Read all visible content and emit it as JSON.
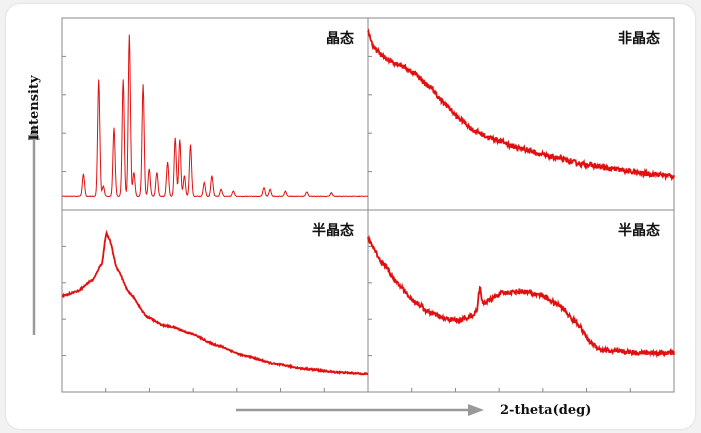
{
  "chart_data": {
    "type": "line",
    "axis": {
      "xlabel": "2-theta(deg)",
      "ylabel": "Intensity"
    },
    "series_color": "#e01010",
    "grid": false,
    "panels": [
      {
        "id": "top-left",
        "title": "晶态",
        "style": "peaks",
        "baseline": 0.02,
        "x_range": [
          0,
          1
        ],
        "y_range": [
          0,
          1
        ],
        "peaks": [
          {
            "x": 0.07,
            "h": 0.13
          },
          {
            "x": 0.12,
            "h": 0.68
          },
          {
            "x": 0.135,
            "h": 0.06
          },
          {
            "x": 0.17,
            "h": 0.4
          },
          {
            "x": 0.2,
            "h": 0.68
          },
          {
            "x": 0.22,
            "h": 0.94
          },
          {
            "x": 0.235,
            "h": 0.14
          },
          {
            "x": 0.265,
            "h": 0.65
          },
          {
            "x": 0.285,
            "h": 0.16
          },
          {
            "x": 0.31,
            "h": 0.14
          },
          {
            "x": 0.345,
            "h": 0.2
          },
          {
            "x": 0.37,
            "h": 0.34
          },
          {
            "x": 0.385,
            "h": 0.33
          },
          {
            "x": 0.4,
            "h": 0.12
          },
          {
            "x": 0.42,
            "h": 0.3
          },
          {
            "x": 0.465,
            "h": 0.08
          },
          {
            "x": 0.49,
            "h": 0.12
          },
          {
            "x": 0.52,
            "h": 0.04
          },
          {
            "x": 0.56,
            "h": 0.03
          },
          {
            "x": 0.66,
            "h": 0.05
          },
          {
            "x": 0.68,
            "h": 0.04
          },
          {
            "x": 0.73,
            "h": 0.03
          },
          {
            "x": 0.8,
            "h": 0.025
          },
          {
            "x": 0.88,
            "h": 0.02
          }
        ]
      },
      {
        "id": "top-right",
        "title": "非晶态",
        "style": "curve",
        "noise": 0.02,
        "x_range": [
          0,
          1
        ],
        "y_range": [
          0,
          1
        ],
        "points": [
          [
            0,
            0.98
          ],
          [
            0.02,
            0.88
          ],
          [
            0.06,
            0.82
          ],
          [
            0.1,
            0.79
          ],
          [
            0.15,
            0.74
          ],
          [
            0.2,
            0.66
          ],
          [
            0.25,
            0.56
          ],
          [
            0.3,
            0.47
          ],
          [
            0.35,
            0.4
          ],
          [
            0.4,
            0.36
          ],
          [
            0.5,
            0.3
          ],
          [
            0.6,
            0.25
          ],
          [
            0.7,
            0.21
          ],
          [
            0.8,
            0.18
          ],
          [
            0.9,
            0.155
          ],
          [
            1,
            0.14
          ]
        ]
      },
      {
        "id": "bottom-left",
        "title": "半晶态",
        "style": "curve",
        "noise": 0.006,
        "x_range": [
          0,
          1
        ],
        "y_range": [
          0,
          1
        ],
        "points": [
          [
            0,
            0.53
          ],
          [
            0.05,
            0.56
          ],
          [
            0.1,
            0.63
          ],
          [
            0.13,
            0.73
          ],
          [
            0.145,
            0.92
          ],
          [
            0.155,
            0.88
          ],
          [
            0.18,
            0.7
          ],
          [
            0.22,
            0.55
          ],
          [
            0.28,
            0.4
          ],
          [
            0.33,
            0.35
          ],
          [
            0.36,
            0.34
          ],
          [
            0.42,
            0.3
          ],
          [
            0.5,
            0.23
          ],
          [
            0.6,
            0.16
          ],
          [
            0.7,
            0.11
          ],
          [
            0.8,
            0.08
          ],
          [
            0.9,
            0.06
          ],
          [
            1,
            0.05
          ]
        ]
      },
      {
        "id": "bottom-right",
        "title": "半晶态",
        "style": "curve",
        "noise": 0.02,
        "x_range": [
          0,
          1
        ],
        "y_range": [
          0,
          1
        ],
        "spike": {
          "x": 0.365,
          "h": 0.12
        },
        "points": [
          [
            0,
            0.88
          ],
          [
            0.05,
            0.73
          ],
          [
            0.1,
            0.6
          ],
          [
            0.15,
            0.5
          ],
          [
            0.2,
            0.43
          ],
          [
            0.25,
            0.39
          ],
          [
            0.3,
            0.38
          ],
          [
            0.34,
            0.41
          ],
          [
            0.38,
            0.49
          ],
          [
            0.44,
            0.55
          ],
          [
            0.5,
            0.56
          ],
          [
            0.56,
            0.54
          ],
          [
            0.62,
            0.48
          ],
          [
            0.68,
            0.37
          ],
          [
            0.73,
            0.24
          ],
          [
            0.76,
            0.2
          ],
          [
            0.8,
            0.19
          ],
          [
            0.9,
            0.18
          ],
          [
            1,
            0.18
          ]
        ]
      }
    ]
  }
}
